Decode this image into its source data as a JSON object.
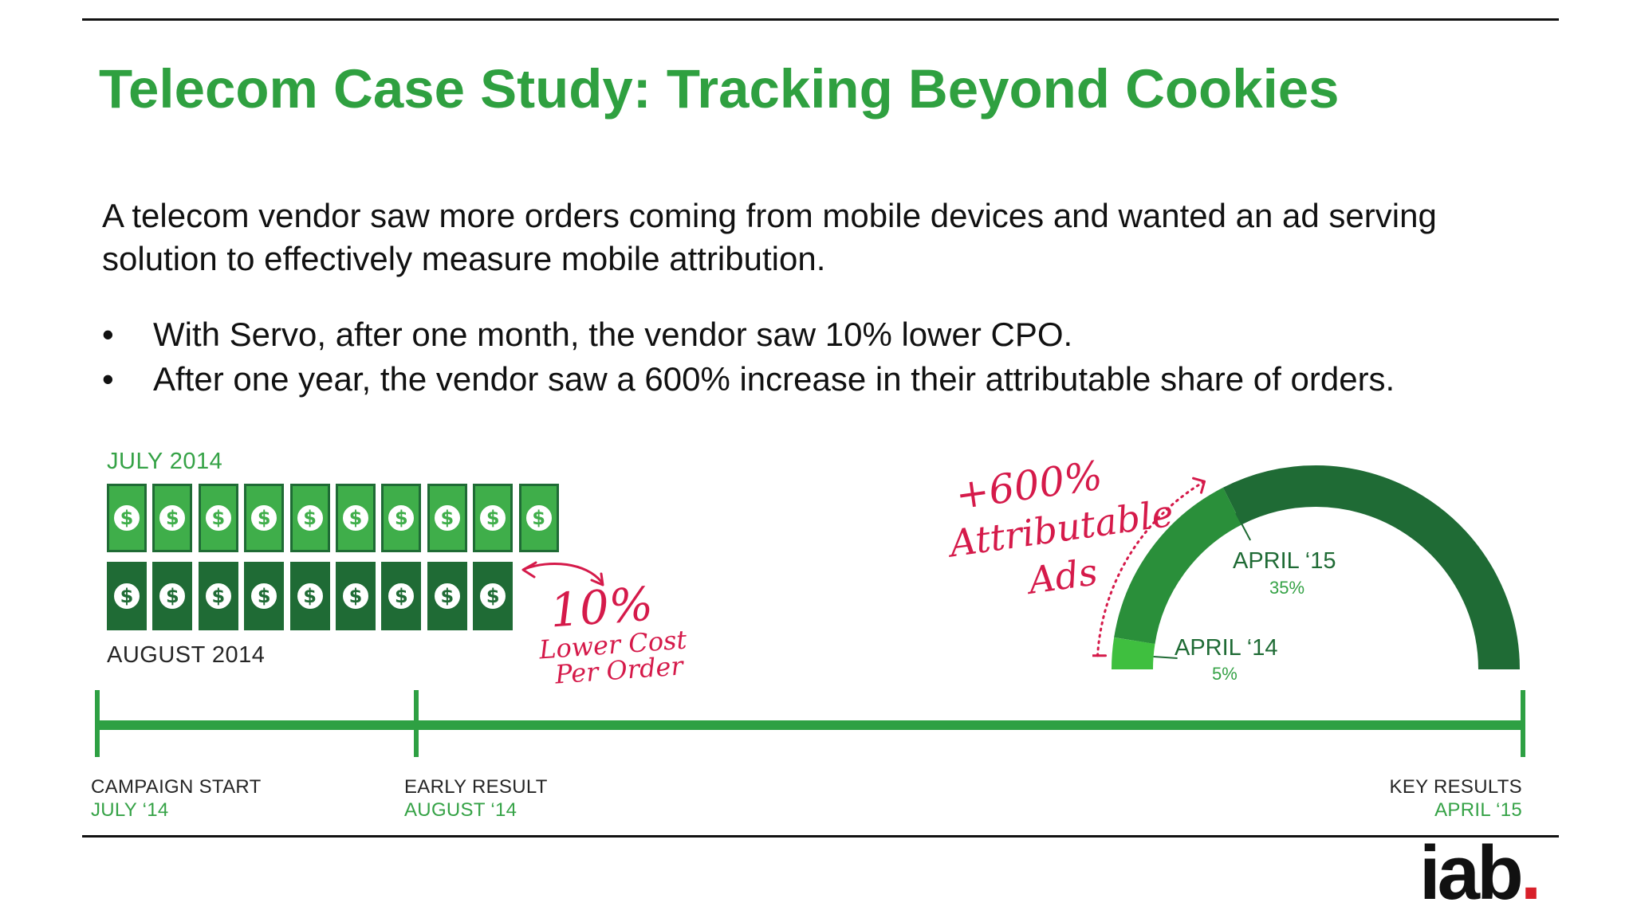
{
  "slide": {
    "title": "Telecom Case Study: Tracking Beyond Cookies",
    "intro": "A telecom vendor saw more orders coming from mobile devices and wanted an ad serving solution to effectively measure mobile attribution.",
    "bullets": [
      "With Servo, after one month, the vendor saw 10% lower CPO.",
      "After one year, the vendor saw a 600% increase in their attributable share of orders."
    ]
  },
  "infographic": {
    "top_row_label": "JULY 2014",
    "bottom_row_label": "AUGUST 2014",
    "top_row_count": 10,
    "bottom_row_count": 9,
    "bill_symbol": "$",
    "bill_icon": "dollar-bill-icon",
    "light_bill_color": "#3fae4a",
    "dark_bill_color": "#1f6b35",
    "cost_note": {
      "value": "10%",
      "line1": "Lower Cost",
      "line2": "Per Order"
    },
    "attribution_note": {
      "line1": "+600%",
      "line2": "Attributable",
      "line3": "Ads"
    },
    "gauge": {
      "low_label": "APRIL ‘14",
      "low_value": "5%",
      "high_label": "APRIL ‘15",
      "high_value": "35%",
      "low_fraction": 0.05,
      "high_fraction": 0.35,
      "color_low": "#3fbf3f",
      "color_mid": "#2a8f3a",
      "color_high": "#1f6b35"
    },
    "accent_red": "#d51a4a",
    "timeline": {
      "milestones": [
        {
          "label": "CAMPAIGN START",
          "date": "JULY ‘14"
        },
        {
          "label": "EARLY RESULT",
          "date": "AUGUST ‘14"
        },
        {
          "label": "KEY RESULTS",
          "date": "APRIL ‘15"
        }
      ],
      "color": "#2ea043"
    }
  },
  "logo": {
    "text": "iab",
    "dot": "."
  }
}
